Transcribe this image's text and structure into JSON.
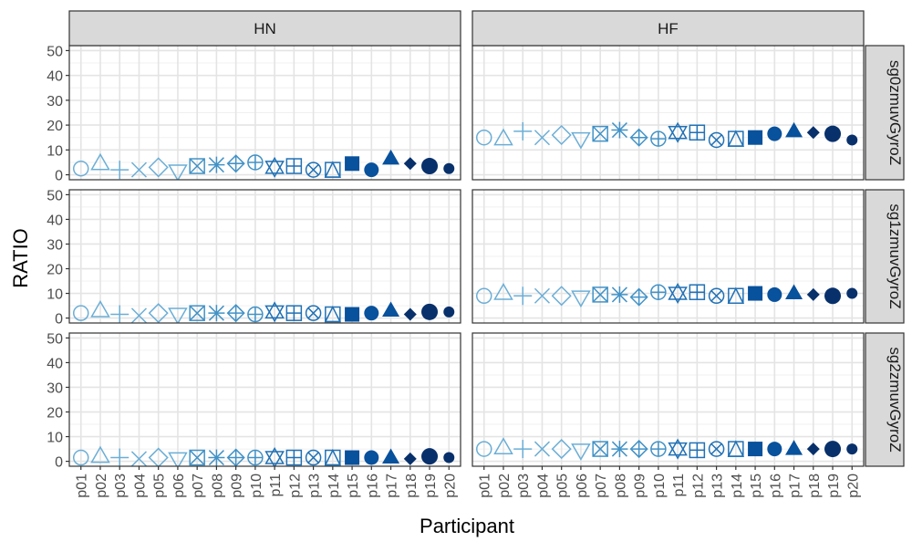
{
  "chart_data": {
    "type": "scatter",
    "xlabel": "Participant",
    "ylabel": "RATIO",
    "ylim": [
      -2,
      52
    ],
    "yticks": [
      0,
      10,
      20,
      30,
      40,
      50
    ],
    "grid": true,
    "legend": "none",
    "categories": [
      "p01",
      "p02",
      "p03",
      "p04",
      "p05",
      "p06",
      "p07",
      "p08",
      "p09",
      "p10",
      "p11",
      "p12",
      "p13",
      "p14",
      "p15",
      "p16",
      "p17",
      "p18",
      "p19",
      "p20"
    ],
    "col_facets": [
      "HN",
      "HF"
    ],
    "row_facets": [
      "sg0zmuvGyroZ",
      "sg1zmuvGyroZ",
      "sg2zmuvGyroZ"
    ],
    "shapes": [
      "open-circle",
      "open-triangle",
      "plus",
      "cross",
      "open-diamond",
      "open-triangle-down",
      "square-cross",
      "asterisk",
      "diamond-plus",
      "circle-plus",
      "star-of-david",
      "square-plus",
      "circle-cross",
      "square-triangle",
      "filled-square",
      "filled-circle",
      "filled-triangle",
      "filled-diamond",
      "filled-circle-large",
      "filled-circle-small"
    ],
    "colors": [
      "#6baed6",
      "#6baed6",
      "#6baed6",
      "#6baed6",
      "#6baed6",
      "#6baed6",
      "#4292c6",
      "#4292c6",
      "#4292c6",
      "#4292c6",
      "#2171b5",
      "#2171b5",
      "#2171b5",
      "#2171b5",
      "#08519c",
      "#08519c",
      "#08519c",
      "#08306b",
      "#08306b",
      "#08306b"
    ],
    "panels": [
      {
        "row": "sg0zmuvGyroZ",
        "col": "HN",
        "values": [
          2.5,
          4.5,
          2,
          2,
          3,
          1.5,
          3.5,
          4,
          4.5,
          5,
          3,
          3.5,
          2,
          2,
          4.5,
          2,
          6.5,
          4.5,
          3.5,
          2.5
        ]
      },
      {
        "row": "sg0zmuvGyroZ",
        "col": "HF",
        "values": [
          15,
          14.5,
          17.5,
          15,
          16,
          14.5,
          16.5,
          18,
          15,
          14.5,
          17,
          17,
          14,
          14.5,
          15,
          16.5,
          17.5,
          17,
          16.5,
          14
        ]
      },
      {
        "row": "sg1zmuvGyroZ",
        "col": "HN",
        "values": [
          2,
          3,
          1.5,
          1,
          2,
          1.5,
          2,
          2,
          2,
          1.5,
          2.5,
          2,
          2,
          1.5,
          1.5,
          2,
          3,
          1.5,
          2.5,
          2.5
        ]
      },
      {
        "row": "sg1zmuvGyroZ",
        "col": "HF",
        "values": [
          9,
          10,
          9,
          9,
          9,
          8.5,
          9.5,
          9.5,
          8.5,
          10.5,
          10,
          10.5,
          9,
          9,
          10,
          9.5,
          10,
          9.5,
          9,
          10
        ]
      },
      {
        "row": "sg2zmuvGyroZ",
        "col": "HN",
        "values": [
          1.5,
          2,
          1.5,
          1,
          1.5,
          1,
          1.5,
          1.5,
          1.5,
          1.5,
          1.5,
          1.5,
          1.5,
          1.5,
          1.5,
          1.5,
          1.5,
          1,
          2,
          1.5
        ]
      },
      {
        "row": "sg2zmuvGyroZ",
        "col": "HF",
        "values": [
          5,
          5.5,
          5,
          5,
          5,
          4.5,
          5,
          5,
          5,
          5,
          5,
          4.5,
          5,
          5,
          5,
          5,
          5,
          5,
          5,
          5
        ]
      }
    ]
  }
}
